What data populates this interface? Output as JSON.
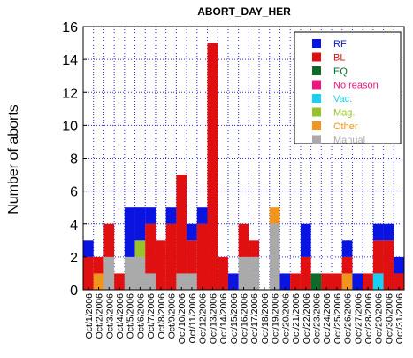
{
  "chart_data": {
    "type": "bar",
    "stacked": true,
    "title": "ABORT_DAY_HER",
    "ylabel": "Number of aborts",
    "xlabel": "",
    "ylim": [
      0,
      16
    ],
    "yticks": [
      0,
      2,
      4,
      6,
      8,
      10,
      12,
      14,
      16
    ],
    "grid": true,
    "legend_position": "top-right",
    "categories": [
      "Oct/1/2006",
      "Oct/2/2006",
      "Oct/3/2006",
      "Oct/4/2006",
      "Oct/5/2006",
      "Oct/6/2006",
      "Oct/7/2006",
      "Oct/8/2006",
      "Oct/9/2006",
      "Oct/10/2006",
      "Oct/11/2006",
      "Oct/12/2006",
      "Oct/13/2006",
      "Oct/14/2006",
      "Oct/15/2006",
      "Oct/16/2006",
      "Oct/17/2006",
      "Oct/18/2006",
      "Oct/19/2006",
      "Oct/20/2006",
      "Oct/21/2006",
      "Oct/22/2006",
      "Oct/23/2006",
      "Oct/24/2006",
      "Oct/25/2006",
      "Oct/26/2006",
      "Oct/27/2006",
      "Oct/28/2006",
      "Oct/29/2006",
      "Oct/30/2006",
      "Oct/31/2006"
    ],
    "series": [
      {
        "name": "Manual",
        "color": "#aaaaaa",
        "values": [
          0,
          0,
          2,
          0,
          2,
          2,
          1,
          0,
          0,
          1,
          1,
          0,
          0,
          0,
          0,
          2,
          2,
          0,
          4,
          0,
          0,
          0,
          0,
          0,
          0,
          0,
          0,
          0,
          0,
          0,
          0
        ]
      },
      {
        "name": "Other",
        "color": "#f0961e",
        "values": [
          0,
          1,
          0,
          0,
          0,
          0,
          0,
          0,
          0,
          0,
          0,
          0,
          0,
          0,
          0,
          0,
          0,
          0,
          1,
          0,
          0,
          0,
          0,
          0,
          0,
          1,
          0,
          0,
          0,
          0,
          0
        ]
      },
      {
        "name": "Mag.",
        "color": "#99c22a",
        "values": [
          0,
          0,
          0,
          0,
          0,
          1,
          0,
          0,
          0,
          0,
          0,
          0,
          0,
          0,
          0,
          0,
          0,
          0,
          0,
          0,
          0,
          0,
          0,
          0,
          0,
          0,
          0,
          0,
          0,
          0,
          0
        ]
      },
      {
        "name": "Vac.",
        "color": "#1ad0f0",
        "values": [
          0,
          0,
          0,
          0,
          0,
          0,
          0,
          0,
          0,
          0,
          0,
          0,
          0,
          0,
          0,
          0,
          0,
          0,
          0,
          0,
          0,
          0,
          0,
          0,
          0,
          0,
          0,
          0,
          1,
          0,
          0
        ]
      },
      {
        "name": "No reason",
        "color": "#f0147f",
        "values": [
          0,
          0,
          0,
          0,
          0,
          0,
          0,
          0,
          0,
          0,
          0,
          0,
          0,
          0,
          0,
          0,
          0,
          0,
          0,
          0,
          0,
          0,
          0,
          0,
          0,
          0,
          0,
          0,
          0,
          0,
          0
        ]
      },
      {
        "name": "EQ",
        "color": "#0f6a2a",
        "values": [
          0,
          0,
          0,
          0,
          0,
          0,
          0,
          0,
          0,
          0,
          0,
          0,
          0,
          0,
          0,
          0,
          0,
          0,
          0,
          0,
          0,
          0,
          1,
          0,
          0,
          0,
          0,
          0,
          0,
          0,
          0
        ]
      },
      {
        "name": "BL",
        "color": "#e01010",
        "values": [
          2,
          1,
          2,
          1,
          0,
          0,
          3,
          3,
          4,
          6,
          2,
          4,
          15,
          2,
          0,
          2,
          1,
          0,
          0,
          0,
          1,
          2,
          0,
          1,
          1,
          1,
          0,
          1,
          2,
          3,
          1
        ]
      },
      {
        "name": "RF",
        "color": "#0a14e0",
        "values": [
          1,
          0,
          0,
          0,
          3,
          2,
          1,
          0,
          1,
          0,
          1,
          1,
          0,
          0,
          1,
          0,
          0,
          0,
          0,
          1,
          0,
          2,
          0,
          0,
          0,
          1,
          1,
          0,
          1,
          1,
          1
        ]
      }
    ],
    "legend_order": [
      "RF",
      "BL",
      "EQ",
      "No reason",
      "Vac.",
      "Mag.",
      "Other",
      "Manual"
    ]
  }
}
